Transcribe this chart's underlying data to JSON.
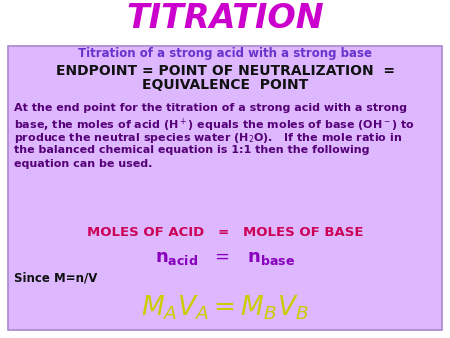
{
  "fig_bg_color": "#FFFFFF",
  "box_bg_color": "#DDB8FF",
  "title_color": "#CC00CC",
  "title_text": "TITRATION",
  "subtitle_color": "#6633CC",
  "subtitle_text": "Titration of a strong acid with a strong base",
  "endpoint_color": "#111111",
  "endpoint_line1": "ENDPOINT = POINT OF NEUTRALIZATION  =",
  "endpoint_line2": "EQUIVALENCE  POINT",
  "body_color": "#550077",
  "pink_color": "#CC0055",
  "yellow_color": "#CCCC00",
  "purple_eq_color": "#8800BB",
  "since_color": "#111111",
  "figsize": [
    4.5,
    3.38
  ],
  "dpi": 100,
  "title_fontsize": 24,
  "subtitle_fontsize": 8.5,
  "endpoint_fontsize": 10,
  "body_fontsize": 8,
  "moles_fontsize": 9.5,
  "n_fontsize": 13,
  "mavb_fontsize": 19
}
